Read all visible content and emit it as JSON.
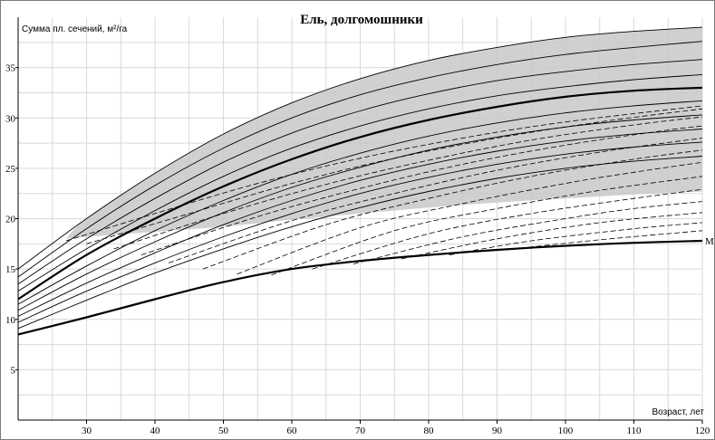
{
  "chart_data": {
    "type": "line",
    "title": "Ель, долгомошники",
    "ylabel": "Сумма пл. сечений, м²/га",
    "xlabel": "Возраст, лет",
    "xlim": [
      20,
      120
    ],
    "ylim": [
      0,
      40
    ],
    "x_ticks": [
      30,
      40,
      50,
      60,
      70,
      80,
      90,
      100,
      110,
      120
    ],
    "y_ticks": [
      5,
      10,
      15,
      20,
      25,
      30,
      35
    ],
    "grid": true,
    "shaded_region": {
      "upper": [
        [
          27,
          18
        ],
        [
          30,
          20
        ],
        [
          40,
          24.5
        ],
        [
          50,
          28.4
        ],
        [
          60,
          31.5
        ],
        [
          70,
          33.9
        ],
        [
          80,
          35.7
        ],
        [
          90,
          37
        ],
        [
          100,
          38
        ],
        [
          110,
          38.6
        ],
        [
          120,
          39
        ]
      ],
      "lower": [
        [
          27,
          18
        ],
        [
          30,
          18.2
        ],
        [
          40,
          18.7
        ],
        [
          50,
          19.2
        ],
        [
          60,
          19.9
        ],
        [
          70,
          20.5
        ],
        [
          80,
          21.1
        ],
        [
          90,
          21.6
        ],
        [
          100,
          22
        ],
        [
          110,
          22.4
        ],
        [
          120,
          22.7
        ]
      ]
    },
    "series": [
      {
        "label": "",
        "style": "thin",
        "x": [
          20,
          30,
          40,
          50,
          60,
          70,
          80,
          90,
          100,
          110,
          120
        ],
        "y": [
          15,
          20,
          24.5,
          28.4,
          31.5,
          33.9,
          35.7,
          37,
          38,
          38.6,
          39
        ]
      },
      {
        "label": "",
        "style": "thin",
        "x": [
          20,
          30,
          40,
          50,
          60,
          70,
          80,
          90,
          100,
          110,
          120
        ],
        "y": [
          14.2,
          19,
          23.3,
          27,
          30,
          32.3,
          34,
          35.3,
          36.3,
          37,
          37.6
        ]
      },
      {
        "label": "",
        "style": "thin",
        "x": [
          20,
          30,
          40,
          50,
          60,
          70,
          80,
          90,
          100,
          110,
          120
        ],
        "y": [
          13.5,
          18,
          22,
          25.6,
          28.5,
          30.7,
          32.4,
          33.7,
          34.6,
          35.3,
          35.8
        ]
      },
      {
        "label": "",
        "style": "thin",
        "x": [
          20,
          30,
          40,
          50,
          60,
          70,
          80,
          90,
          100,
          110,
          120
        ],
        "y": [
          12.8,
          17,
          20.8,
          24.2,
          27,
          29.2,
          30.9,
          32.2,
          33.1,
          33.8,
          34.3
        ]
      },
      {
        "label": "",
        "style": "bold",
        "x": [
          20,
          30,
          40,
          50,
          60,
          70,
          80,
          90,
          100,
          110,
          120
        ],
        "y": [
          12,
          16.4,
          20,
          23.2,
          25.9,
          28.1,
          29.8,
          31.1,
          32.1,
          32.7,
          33
        ]
      },
      {
        "label": "",
        "style": "thin",
        "x": [
          20,
          30,
          40,
          50,
          60,
          70,
          80,
          90,
          100,
          110,
          120
        ],
        "y": [
          11.5,
          15.3,
          18.8,
          21.8,
          24.4,
          26.5,
          28.2,
          29.5,
          30.5,
          31.2,
          31.7
        ]
      },
      {
        "label": "",
        "style": "thin",
        "x": [
          20,
          30,
          40,
          50,
          60,
          70,
          80,
          90,
          100,
          110,
          120
        ],
        "y": [
          10.9,
          14.5,
          17.7,
          20.6,
          23.1,
          25.1,
          26.8,
          28.1,
          29.1,
          29.8,
          30.3
        ]
      },
      {
        "label": "",
        "style": "thin",
        "x": [
          20,
          30,
          40,
          50,
          60,
          70,
          80,
          90,
          100,
          110,
          120
        ],
        "y": [
          10.3,
          13.6,
          16.6,
          19.4,
          21.8,
          23.8,
          25.4,
          26.7,
          27.7,
          28.4,
          28.9
        ]
      },
      {
        "label": "",
        "style": "thin",
        "x": [
          20,
          30,
          40,
          50,
          60,
          70,
          80,
          90,
          100,
          110,
          120
        ],
        "y": [
          9.7,
          12.8,
          15.6,
          18.2,
          20.5,
          22.5,
          24.1,
          25.4,
          26.4,
          27.1,
          27.6
        ]
      },
      {
        "label": "",
        "style": "thin",
        "x": [
          20,
          30,
          40,
          50,
          60,
          70,
          80,
          90,
          100,
          110,
          120
        ],
        "y": [
          9.1,
          11.9,
          14.6,
          17,
          19.2,
          21.1,
          22.7,
          24,
          25,
          25.7,
          26.2
        ]
      },
      {
        "label": "М",
        "style": "bold",
        "x": [
          20,
          30,
          40,
          50,
          60,
          70,
          80,
          90,
          100,
          110,
          120
        ],
        "y": [
          8.5,
          10.2,
          12,
          13.7,
          15,
          15.8,
          16.4,
          16.9,
          17.3,
          17.6,
          17.8
        ]
      },
      {
        "label": "",
        "style": "dashed",
        "x": [
          27,
          40,
          55,
          70,
          85,
          100,
          120
        ],
        "y": [
          17.8,
          20.5,
          23.5,
          26,
          28,
          29.6,
          31.2
        ]
      },
      {
        "label": "",
        "style": "dashed",
        "x": [
          30,
          45,
          60,
          75,
          90,
          105,
          120
        ],
        "y": [
          17.5,
          20.5,
          23.5,
          26,
          28,
          29.6,
          30.9
        ]
      },
      {
        "label": "",
        "style": "dashed",
        "x": [
          34,
          50,
          65,
          80,
          95,
          110,
          120
        ],
        "y": [
          17,
          20.5,
          23.4,
          25.8,
          27.8,
          29.3,
          30.1
        ]
      },
      {
        "label": "",
        "style": "dashed",
        "x": [
          38,
          55,
          70,
          85,
          100,
          115,
          120
        ],
        "y": [
          16.4,
          20.2,
          23,
          25.4,
          27.3,
          28.8,
          29.2
        ]
      },
      {
        "label": "",
        "style": "dashed",
        "x": [
          42,
          60,
          75,
          90,
          105,
          120
        ],
        "y": [
          15.6,
          19.8,
          22.5,
          24.8,
          26.6,
          28
        ]
      },
      {
        "label": "",
        "style": "dashed",
        "x": [
          47,
          65,
          80,
          95,
          110,
          120
        ],
        "y": [
          15,
          19.4,
          22,
          24.2,
          25.9,
          26.8
        ]
      },
      {
        "label": "",
        "style": "dashed",
        "x": [
          52,
          70,
          85,
          100,
          110,
          120
        ],
        "y": [
          14.5,
          19.1,
          21.5,
          23.5,
          24.6,
          25.6
        ]
      },
      {
        "label": "",
        "style": "dashed",
        "x": [
          57,
          75,
          90,
          105,
          120
        ],
        "y": [
          14.4,
          18.8,
          21,
          22.8,
          24.2
        ]
      },
      {
        "label": "",
        "style": "dashed",
        "x": [
          63,
          80,
          95,
          110,
          120
        ],
        "y": [
          15,
          18.5,
          20.5,
          22,
          22.9
        ]
      },
      {
        "label": "",
        "style": "dashed",
        "x": [
          69,
          85,
          100,
          110,
          120
        ],
        "y": [
          15.5,
          18.2,
          20,
          21,
          21.7
        ]
      },
      {
        "label": "",
        "style": "dashed",
        "x": [
          76,
          90,
          105,
          120
        ],
        "y": [
          16,
          18,
          19.6,
          20.6
        ]
      },
      {
        "label": "",
        "style": "dashed",
        "x": [
          83,
          95,
          110,
          120
        ],
        "y": [
          16.4,
          17.8,
          19,
          19.6
        ]
      },
      {
        "label": "",
        "style": "dashed",
        "x": [
          91,
          105,
          120
        ],
        "y": [
          16.9,
          17.9,
          18.8
        ]
      }
    ],
    "annotations": [
      {
        "text": "М",
        "x": 120,
        "y": 17.8
      }
    ],
    "colors": {
      "shade": "#c8c8c8",
      "line": "#000000",
      "grid": "#d9d9d9",
      "frame": "#7a7a7a"
    }
  }
}
